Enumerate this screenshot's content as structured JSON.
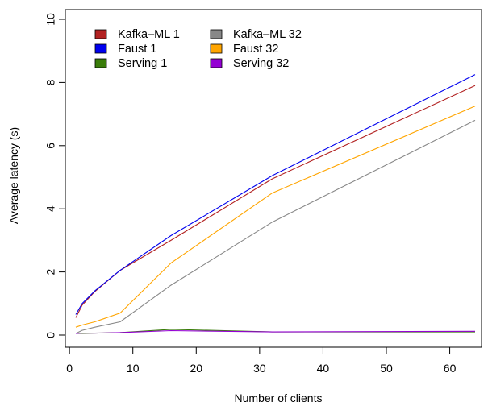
{
  "chart_data": {
    "type": "line",
    "xlabel": "Number of clients",
    "ylabel": "Average latency (s)",
    "xlim": [
      1,
      64
    ],
    "ylim": [
      0,
      10
    ],
    "xticks": [
      0,
      10,
      20,
      30,
      40,
      50,
      60
    ],
    "yticks": [
      0,
      2,
      4,
      6,
      8,
      10
    ],
    "grid": false,
    "legend": "top-left",
    "series": [
      {
        "name": "Kafka–ML 1",
        "color": "#b22222",
        "x": [
          1,
          2,
          4,
          8,
          16,
          32,
          64
        ],
        "y": [
          0.55,
          0.95,
          1.38,
          2.05,
          3.0,
          4.95,
          7.9
        ]
      },
      {
        "name": "Faust 1",
        "color": "#0000ee",
        "x": [
          1,
          2,
          4,
          8,
          16,
          32,
          64
        ],
        "y": [
          0.65,
          1.0,
          1.4,
          2.05,
          3.15,
          5.05,
          8.25
        ]
      },
      {
        "name": "Serving 1",
        "color": "#3a7d0a",
        "x": [
          1,
          2,
          4,
          8,
          16,
          32,
          64
        ],
        "y": [
          0.05,
          0.05,
          0.06,
          0.08,
          0.18,
          0.1,
          0.1
        ]
      },
      {
        "name": "Kafka–ML 32",
        "color": "#888888",
        "x": [
          1,
          2,
          4,
          8,
          16,
          32,
          64
        ],
        "y": [
          0.05,
          0.15,
          0.25,
          0.42,
          1.58,
          3.58,
          6.8
        ]
      },
      {
        "name": "Faust 32",
        "color": "#ffa500",
        "x": [
          1,
          2,
          4,
          8,
          16,
          32,
          64
        ],
        "y": [
          0.25,
          0.32,
          0.42,
          0.7,
          2.28,
          4.5,
          7.25
        ]
      },
      {
        "name": "Serving 32",
        "color": "#9400d3",
        "x": [
          1,
          2,
          4,
          8,
          16,
          32,
          64
        ],
        "y": [
          0.05,
          0.06,
          0.06,
          0.08,
          0.14,
          0.1,
          0.12
        ]
      }
    ]
  }
}
